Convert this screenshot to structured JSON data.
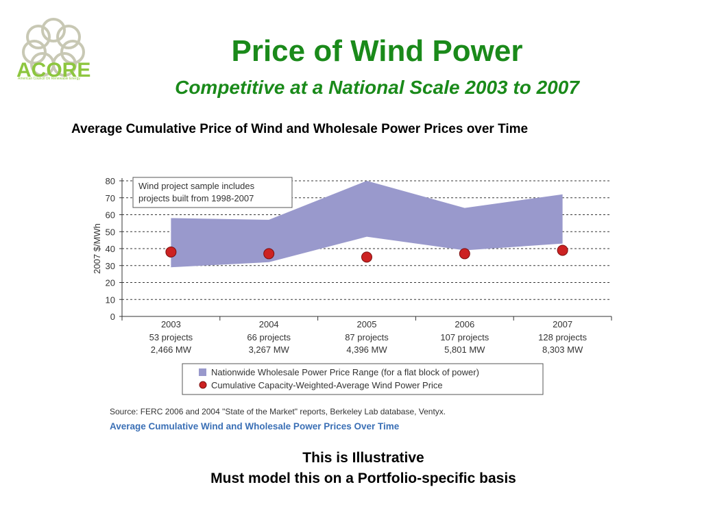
{
  "logo": {
    "text": "ACORE",
    "subtitle": "American Council On Renewable Energy",
    "color": "#8dc63f"
  },
  "title": "Price of Wind Power",
  "subtitle": "Competitive at a National Scale 2003 to 2007",
  "chart_heading": "Average Cumulative Price of Wind and Wholesale Power Prices over Time",
  "chart_data": {
    "type": "area",
    "ylabel": "2007 $/MWh",
    "ylim": [
      0,
      80
    ],
    "yticks": [
      0,
      10,
      20,
      30,
      40,
      50,
      60,
      70,
      80
    ],
    "grid": true,
    "categories": [
      "2003",
      "2004",
      "2005",
      "2006",
      "2007"
    ],
    "category_projects": [
      "53 projects",
      "66 projects",
      "87 projects",
      "107 projects",
      "128 projects"
    ],
    "category_mw": [
      "2,466 MW",
      "3,267 MW",
      "4,396 MW",
      "5,801 MW",
      "8,303 MW"
    ],
    "series": [
      {
        "name": "Nationwide Wholesale Power Price Range (for a flat block of power)",
        "type": "range",
        "low": [
          29,
          32,
          47,
          39,
          43
        ],
        "high": [
          58,
          57,
          80,
          64,
          72
        ],
        "color": "#9999cc"
      },
      {
        "name": "Cumulative Capacity-Weighted-Average Wind Power Price",
        "type": "scatter",
        "values": [
          38,
          37,
          35,
          37,
          39
        ],
        "color": "#cc2222"
      }
    ],
    "annotation": "Wind project sample includes projects built from 1998-2007",
    "legend_position": "bottom"
  },
  "source": "Source: FERC 2006 and 2004 \"State of the Market\" reports, Berkeley Lab database, Ventyx.",
  "caption": "Average Cumulative Wind and Wholesale Power Prices Over Time",
  "footer": {
    "line1": "This is Illustrative",
    "line2": "Must model this on a Portfolio-specific basis"
  }
}
